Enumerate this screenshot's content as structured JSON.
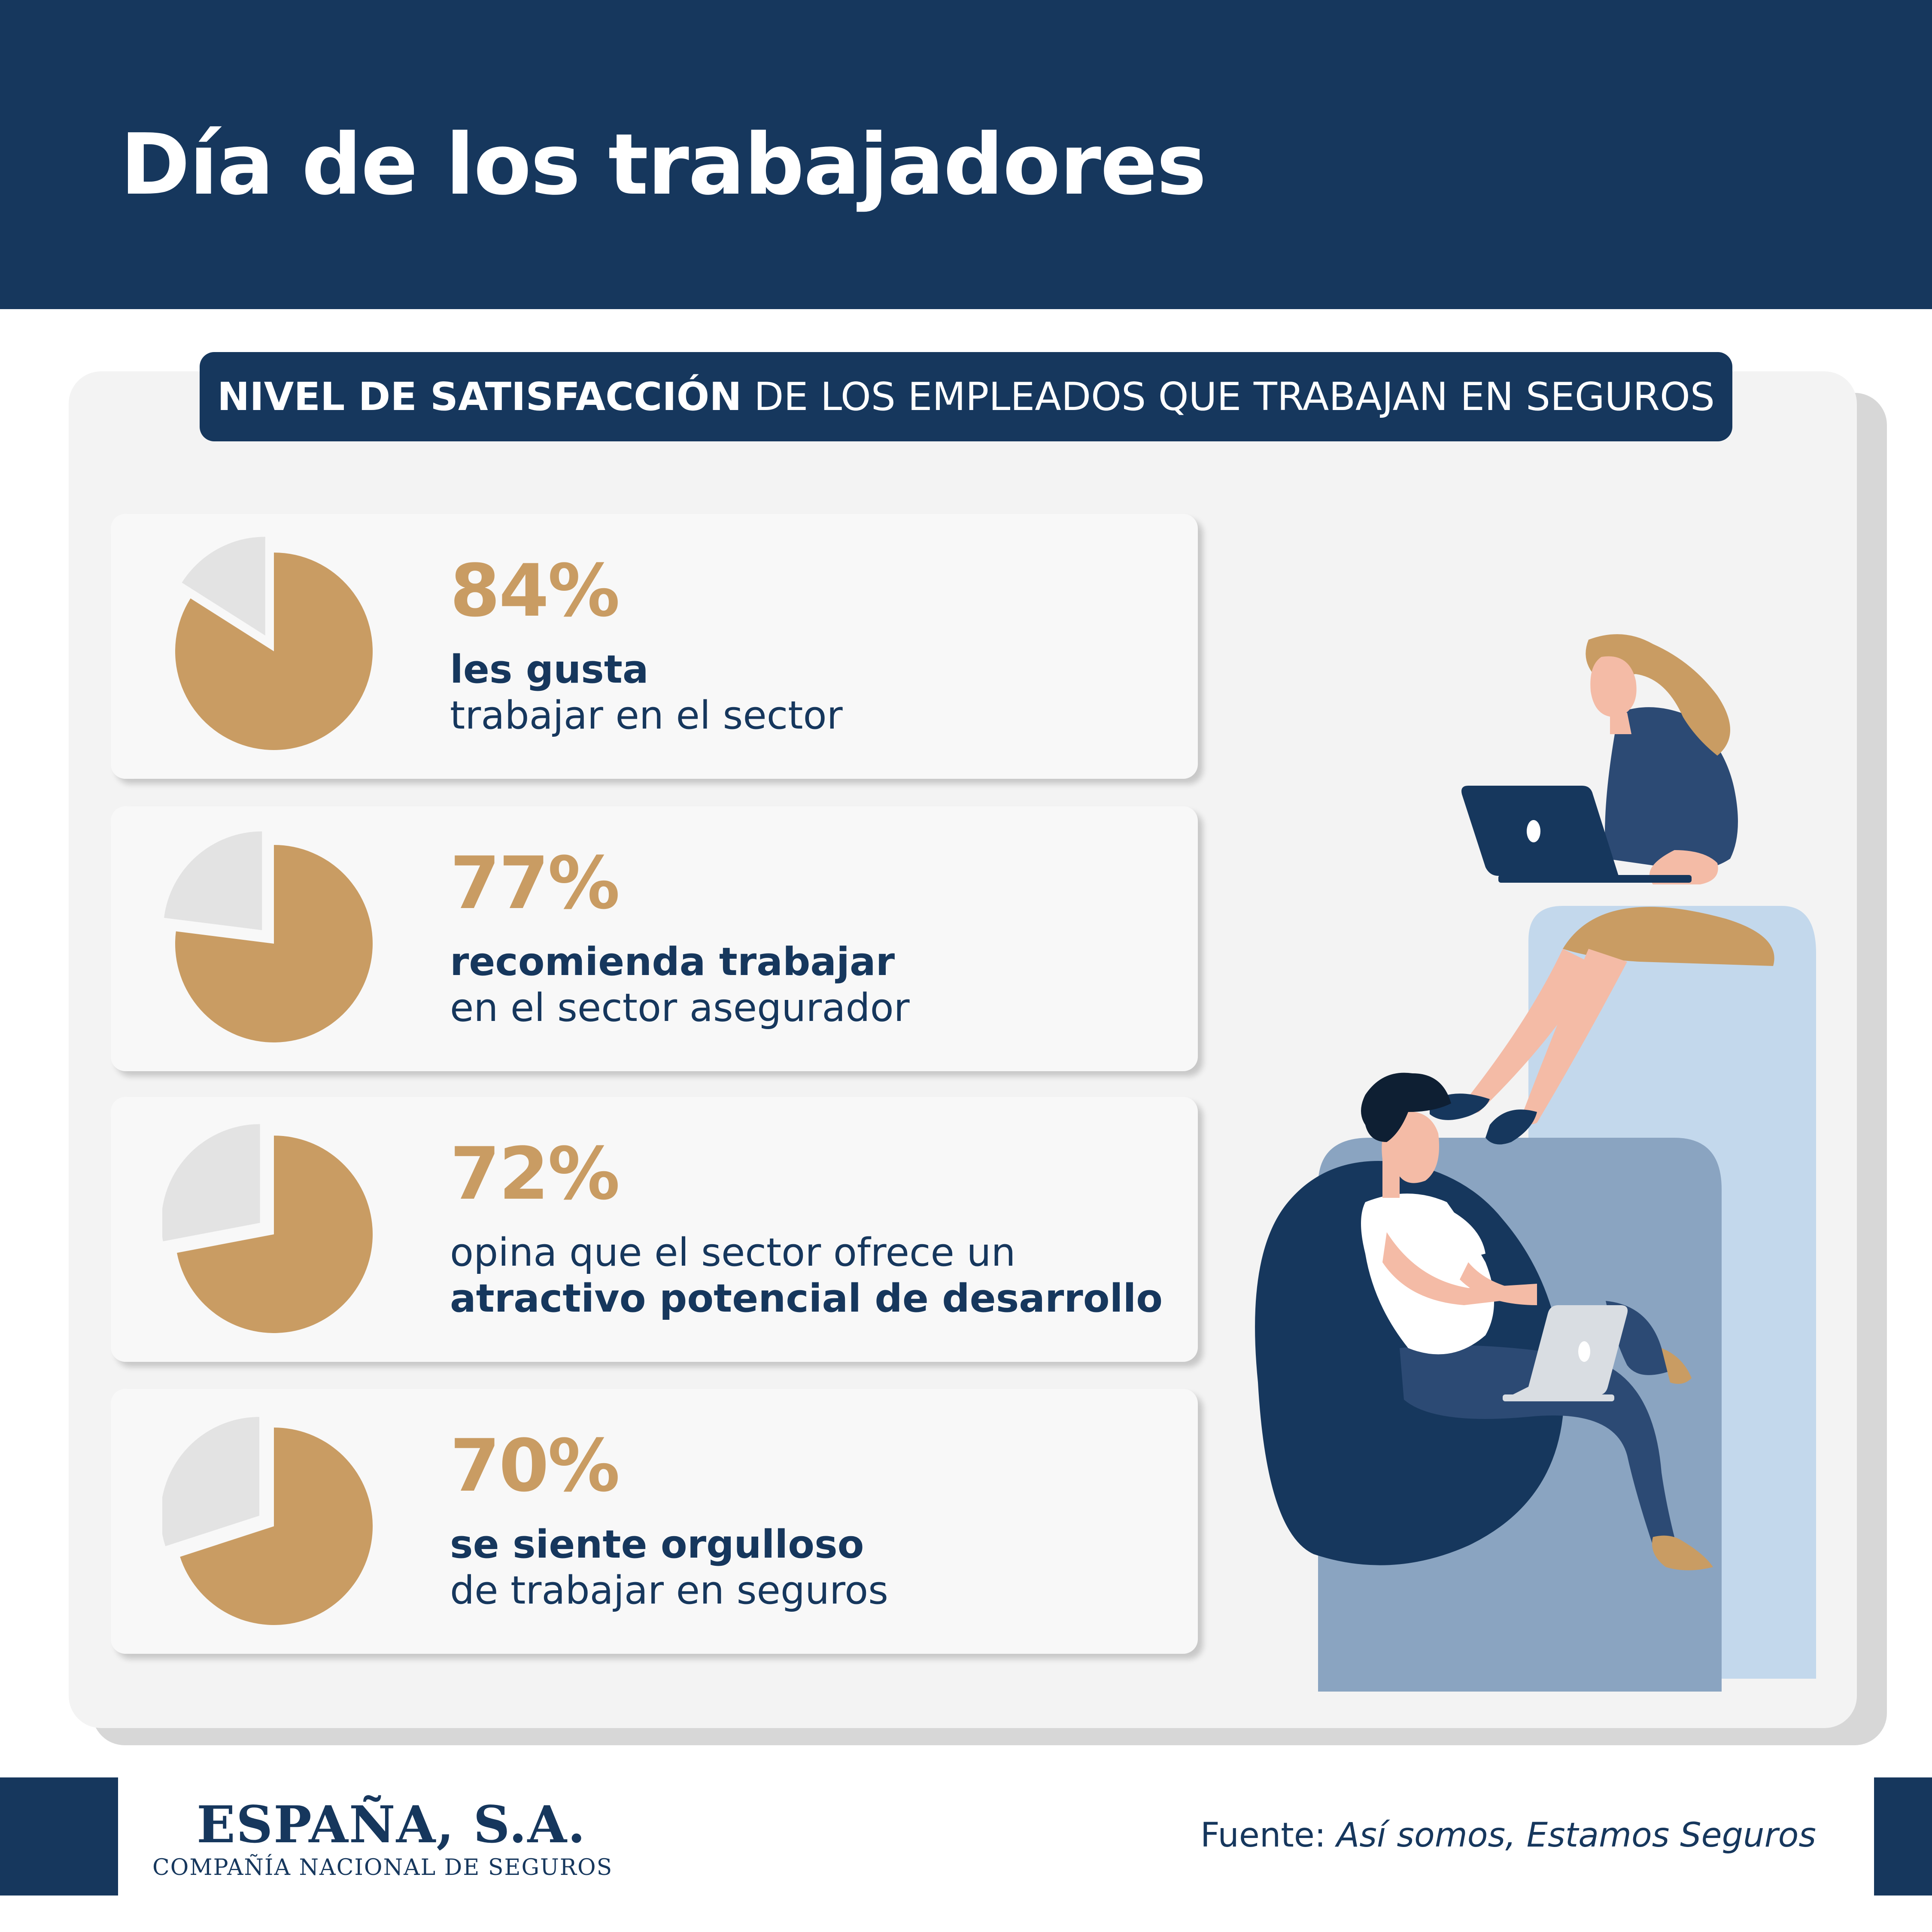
{
  "header": {
    "title": "Día de los trabajadores"
  },
  "subtitle": {
    "bold": "NIVEL DE SATISFACCIÓN",
    "rest": " DE LOS EMPLEADOS QUE TRABAJAN EN SEGUROS"
  },
  "colors": {
    "navy": "#16375d",
    "gold": "#c99c63",
    "pie_rest": "#e3e3e3"
  },
  "stats": [
    {
      "pct_label": "84%",
      "line1": "les gusta",
      "line1_bold": true,
      "line2": "trabajar en el sector",
      "line2_bold": false
    },
    {
      "pct_label": "77%",
      "line1": "recomienda trabajar",
      "line1_bold": true,
      "line2": "en el sector asegurador",
      "line2_bold": false
    },
    {
      "pct_label": "72%",
      "line1": "opina que el sector ofrece un",
      "line1_bold": false,
      "line2": "atractivo potencial de desarrollo",
      "line2_bold": true
    },
    {
      "pct_label": "70%",
      "line1": "se siente orgulloso",
      "line1_bold": true,
      "line2": "de trabajar en seguros",
      "line2_bold": false
    }
  ],
  "chart_data": {
    "type": "pie",
    "charts": [
      {
        "value": 84,
        "rest": 16
      },
      {
        "value": 77,
        "rest": 23
      },
      {
        "value": 72,
        "rest": 28
      },
      {
        "value": 70,
        "rest": 30
      }
    ]
  },
  "footer": {
    "brand": "ESPAÑA, S.A.",
    "brand_sub": "COMPAÑÍA NACIONAL DE SEGUROS",
    "source_label": "Fuente: ",
    "source_title": "Así somos, Estamos Seguros"
  }
}
